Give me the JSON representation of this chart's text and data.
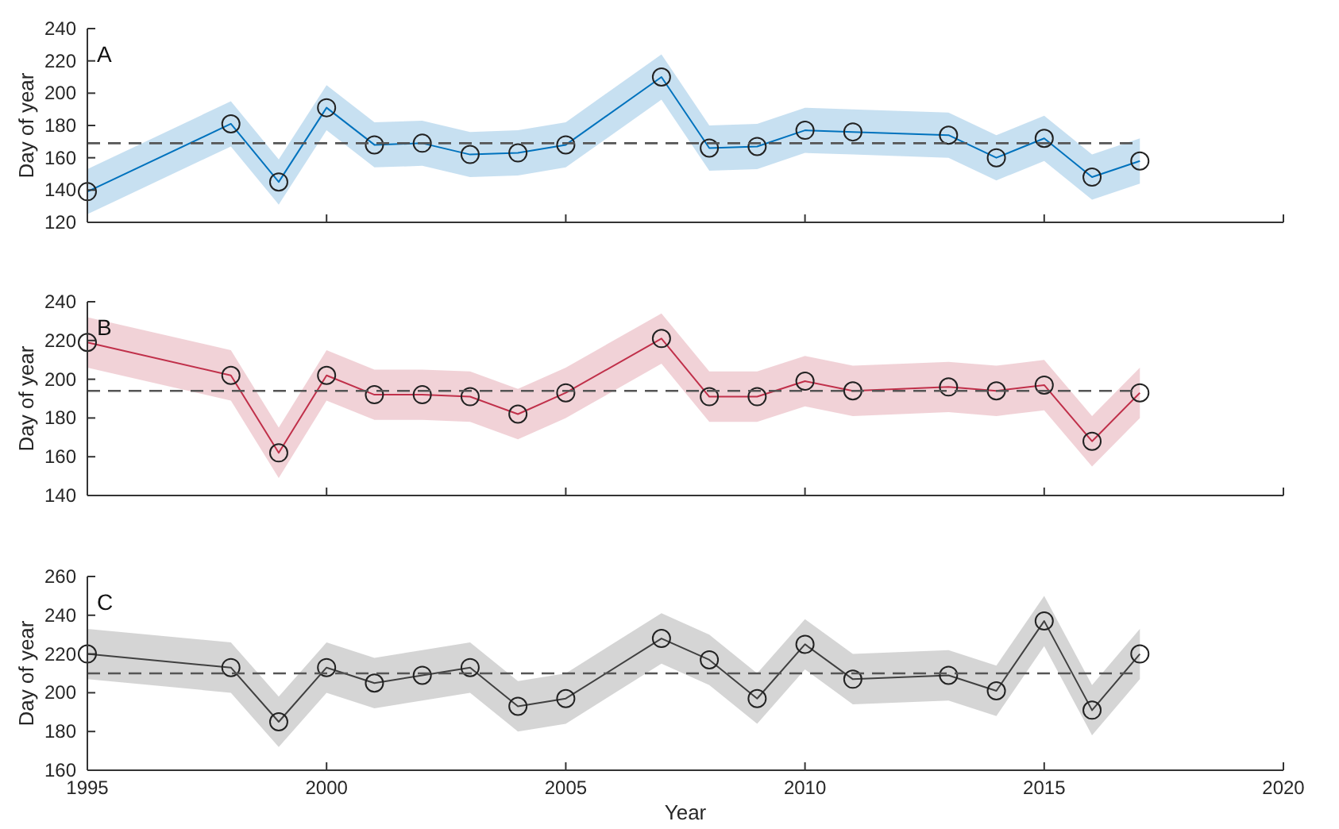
{
  "chart_data": [
    {
      "type": "line",
      "annotations": [
        "A"
      ],
      "ylabel": "Day of year",
      "x": [
        1995,
        1998,
        1999,
        2000,
        2001,
        2002,
        2003,
        2004,
        2005,
        2007,
        2008,
        2009,
        2010,
        2011,
        2013,
        2014,
        2015,
        2016,
        2017
      ],
      "xlim": [
        1995,
        2020
      ],
      "xticks": [
        1995,
        2000,
        2005,
        2010,
        2015,
        2020
      ],
      "ylim": [
        120,
        240
      ],
      "yticks": [
        120,
        140,
        160,
        180,
        200,
        220,
        240
      ],
      "tick_labels": "y",
      "marker": "circle",
      "grid": false,
      "series": [
        {
          "color": "#0072bd",
          "values": [
            139,
            181,
            145,
            191,
            168,
            169,
            162,
            163,
            168,
            210,
            166,
            167,
            177,
            176,
            174,
            160,
            172,
            148,
            158
          ],
          "lower": [
            125,
            167,
            131,
            177,
            154,
            155,
            148,
            149,
            154,
            196,
            152,
            153,
            163,
            162,
            160,
            146,
            158,
            134,
            144
          ],
          "upper": [
            153,
            195,
            159,
            205,
            182,
            183,
            176,
            177,
            182,
            224,
            180,
            181,
            191,
            190,
            188,
            174,
            186,
            162,
            172
          ]
        }
      ],
      "ref_lines": [
        {
          "axis": "y",
          "value": 169,
          "color": "#555555",
          "line_style": "dashed"
        }
      ]
    },
    {
      "type": "line",
      "annotations": [
        "B"
      ],
      "ylabel": "Day of year",
      "x": [
        1995,
        1998,
        1999,
        2000,
        2001,
        2002,
        2003,
        2004,
        2005,
        2007,
        2008,
        2009,
        2010,
        2011,
        2013,
        2014,
        2015,
        2016,
        2017
      ],
      "xlim": [
        1995,
        2020
      ],
      "xticks": [
        1995,
        2000,
        2005,
        2010,
        2015,
        2020
      ],
      "ylim": [
        140,
        240
      ],
      "yticks": [
        140,
        160,
        180,
        200,
        220,
        240
      ],
      "tick_labels": "y",
      "marker": "circle",
      "grid": false,
      "series": [
        {
          "color": "#c0304a",
          "values": [
            219,
            202,
            162,
            202,
            192,
            192,
            191,
            182,
            193,
            221,
            191,
            191,
            199,
            194,
            196,
            194,
            197,
            168,
            193
          ],
          "lower": [
            206,
            189,
            149,
            189,
            179,
            179,
            178,
            169,
            180,
            208,
            178,
            178,
            186,
            181,
            183,
            181,
            184,
            155,
            180
          ],
          "upper": [
            232,
            215,
            175,
            215,
            205,
            205,
            204,
            195,
            206,
            234,
            204,
            204,
            212,
            207,
            209,
            207,
            210,
            181,
            206
          ]
        }
      ],
      "ref_lines": [
        {
          "axis": "y",
          "value": 194,
          "color": "#555555",
          "line_style": "dashed"
        }
      ]
    },
    {
      "type": "line",
      "annotations": [
        "C"
      ],
      "xlabel": "Year",
      "ylabel": "Day of year",
      "x": [
        1995,
        1998,
        1999,
        2000,
        2001,
        2002,
        2003,
        2004,
        2005,
        2007,
        2008,
        2009,
        2010,
        2011,
        2013,
        2014,
        2015,
        2016,
        2017
      ],
      "xlim": [
        1995,
        2020
      ],
      "xticks": [
        1995,
        2000,
        2005,
        2010,
        2015,
        2020
      ],
      "ylim": [
        160,
        260
      ],
      "yticks": [
        160,
        180,
        200,
        220,
        240,
        260
      ],
      "marker": "circle",
      "grid": false,
      "series": [
        {
          "color": "#404040",
          "values": [
            220,
            213,
            185,
            213,
            205,
            209,
            213,
            193,
            197,
            228,
            217,
            197,
            225,
            207,
            209,
            201,
            237,
            191,
            220
          ],
          "lower": [
            207,
            200,
            172,
            200,
            192,
            196,
            200,
            180,
            184,
            215,
            204,
            184,
            212,
            194,
            196,
            188,
            224,
            178,
            207
          ],
          "upper": [
            233,
            226,
            198,
            226,
            218,
            222,
            226,
            206,
            210,
            241,
            230,
            210,
            238,
            220,
            222,
            214,
            250,
            204,
            233
          ]
        }
      ],
      "ref_lines": [
        {
          "axis": "y",
          "value": 210,
          "color": "#555555",
          "line_style": "dashed"
        }
      ]
    }
  ]
}
